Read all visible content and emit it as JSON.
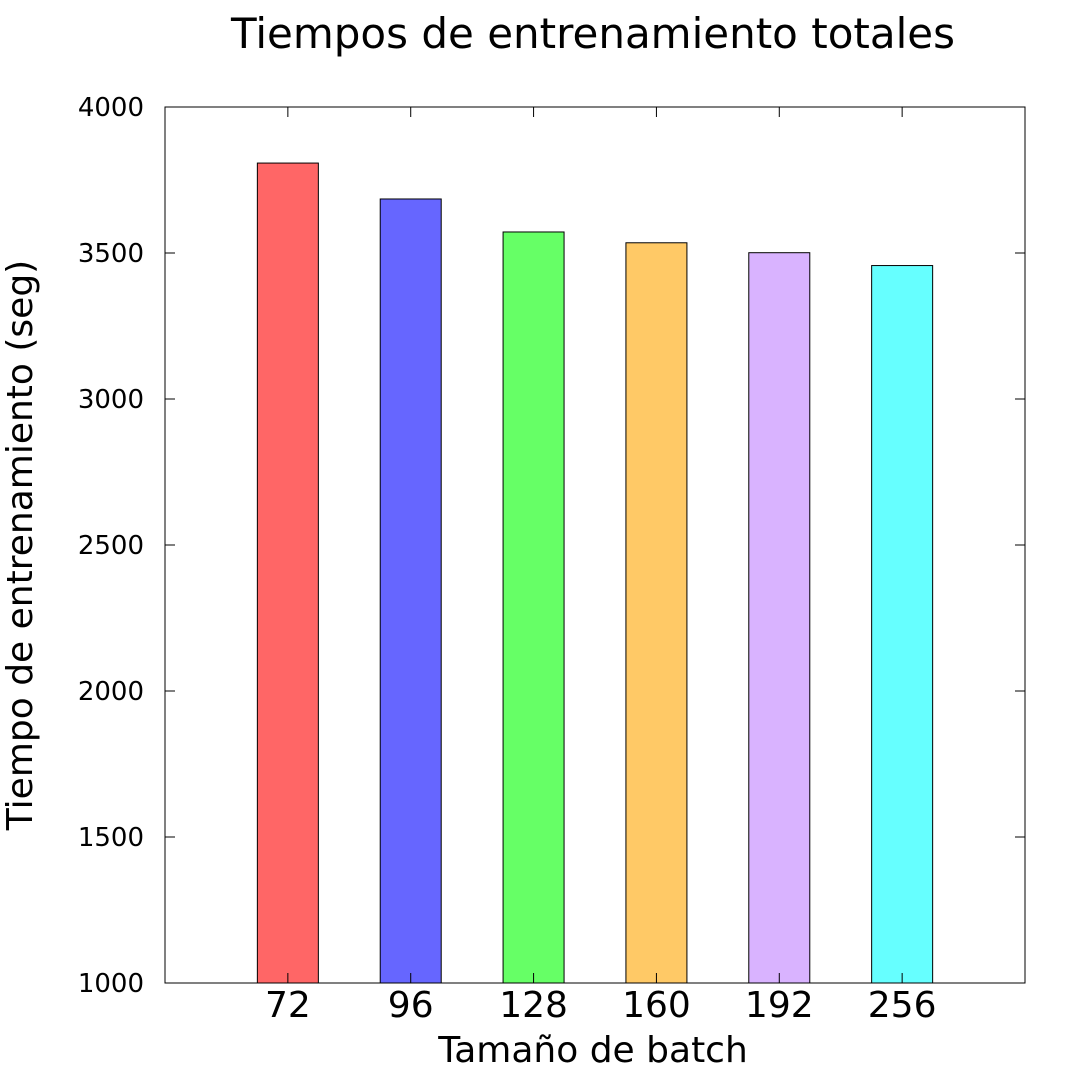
{
  "chart_data": {
    "type": "bar",
    "title": "Tiempos de entrenamiento totales",
    "xlabel": "Tamaño de batch",
    "ylabel": "Tiempo de entrenamiento (seg)",
    "categories": [
      "72",
      "96",
      "128",
      "160",
      "192",
      "256"
    ],
    "values": [
      3808,
      3685,
      3572,
      3535,
      3501,
      3457
    ],
    "ylim": [
      1000,
      4000
    ],
    "yticks": [
      "1000",
      "1500",
      "2000",
      "2500",
      "3000",
      "3500",
      "4000"
    ],
    "colors": [
      "#ff6666",
      "#6666ff",
      "#66ff66",
      "#ffc966",
      "#d9b3ff",
      "#66ffff"
    ],
    "grid": false,
    "legend": "none"
  }
}
